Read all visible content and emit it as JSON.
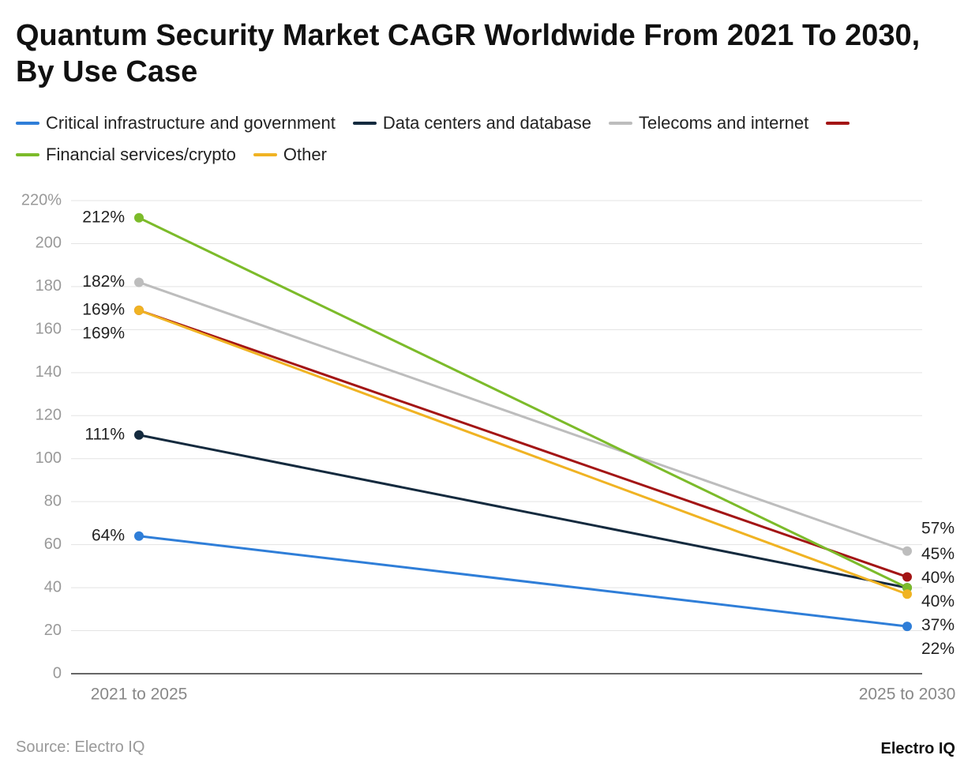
{
  "chart_data": {
    "type": "line",
    "title": "Quantum Security Market CAGR Worldwide From 2021 To 2030, By Use Case",
    "categories": [
      "2021 to 2025",
      "2025 to 2030"
    ],
    "series": [
      {
        "name": "Critical infrastructure and government",
        "color": "#2f7ed8",
        "values": [
          64,
          22
        ],
        "value_labels": [
          "64%",
          "22%"
        ]
      },
      {
        "name": "Data centers and database",
        "color": "#142a3e",
        "values": [
          111,
          40
        ],
        "value_labels": [
          "111%",
          "40%"
        ]
      },
      {
        "name": "Telecoms and internet",
        "color": "#bdbdbd",
        "values": [
          182,
          57
        ],
        "value_labels": [
          "182%",
          "57%"
        ]
      },
      {
        "name": null,
        "color": "#a31515",
        "values": [
          169,
          45
        ],
        "value_labels": [
          "169%",
          "45%"
        ]
      },
      {
        "name": "Financial services/crypto",
        "color": "#7cbb2a",
        "values": [
          212,
          40
        ],
        "value_labels": [
          "212%",
          "40%"
        ]
      },
      {
        "name": "Other",
        "color": "#f0b323",
        "values": [
          169,
          37
        ],
        "value_labels": [
          "169%",
          "37%"
        ]
      }
    ],
    "ylim": [
      0,
      220
    ],
    "yticks": [
      0,
      20,
      40,
      60,
      80,
      100,
      120,
      140,
      160,
      180,
      200,
      {
        "value": 220,
        "label": "220%"
      }
    ],
    "grid": true,
    "source": "Source: Electro IQ",
    "brand": "Electro IQ"
  }
}
